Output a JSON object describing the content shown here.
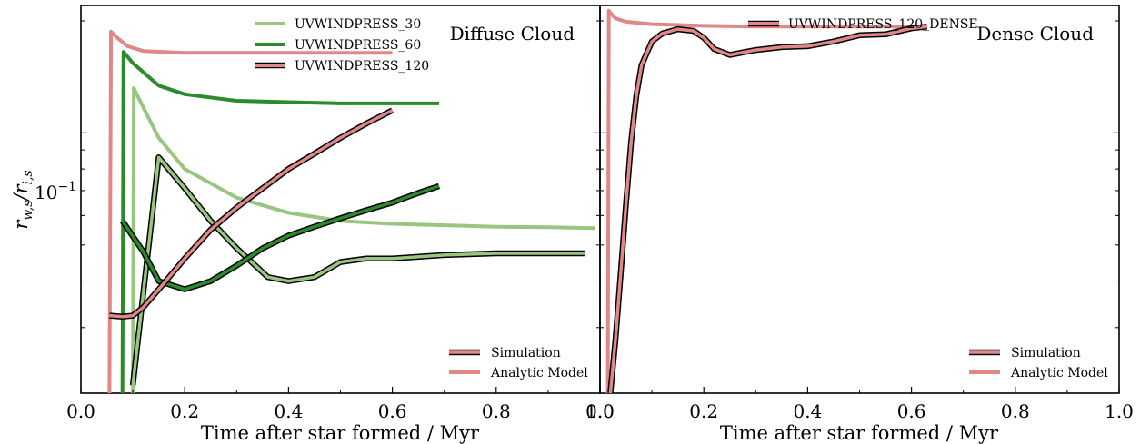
{
  "chart_data": [
    {
      "type": "line",
      "panel_title": "Diffuse Cloud",
      "xlabel": "Time after star formed / Myr",
      "ylabel": "r_{w,s}/r_{i,s}",
      "xlim": [
        0,
        1.0
      ],
      "ylim": [
        0.02,
        0.22
      ],
      "yscale": "log",
      "x_tick_labels": [
        "0.0",
        "0.2",
        "0.4",
        "0.6",
        "0.8",
        "1.0"
      ],
      "y_tick_label": "10^{-1}",
      "legend_series_position": "top-right",
      "legend_style_position": "bottom-right",
      "series": [
        {
          "name": "UVWINDPRESS_30",
          "color": "#98c580",
          "simulation": {
            "x": [
              0.1,
              0.15,
              0.2,
              0.25,
              0.3,
              0.36,
              0.4,
              0.45,
              0.5,
              0.55,
              0.6,
              0.7,
              0.8,
              0.9,
              0.97
            ],
            "y": [
              0.021,
              0.086,
              0.071,
              0.058,
              0.049,
              0.041,
              0.04,
              0.041,
              0.045,
              0.046,
              0.046,
              0.047,
              0.0475,
              0.0475,
              0.0475
            ]
          },
          "analytic": {
            "x": [
              0.1,
              0.102,
              0.11,
              0.15,
              0.2,
              0.3,
              0.4,
              0.5,
              0.6,
              0.7,
              0.8,
              0.9,
              0.99
            ],
            "y": [
              0.02,
              0.132,
              0.125,
              0.097,
              0.08,
              0.067,
              0.061,
              0.058,
              0.057,
              0.0565,
              0.056,
              0.0558,
              0.0555
            ]
          }
        },
        {
          "name": "UVWINDPRESS_60",
          "color": "#2b8a2b",
          "simulation": {
            "x": [
              0.08,
              0.12,
              0.15,
              0.2,
              0.25,
              0.3,
              0.35,
              0.4,
              0.45,
              0.5,
              0.55,
              0.6,
              0.65,
              0.69
            ],
            "y": [
              0.058,
              0.048,
              0.04,
              0.038,
              0.04,
              0.044,
              0.049,
              0.053,
              0.056,
              0.059,
              0.062,
              0.065,
              0.069,
              0.072
            ]
          },
          "analytic": {
            "x": [
              0.08,
              0.082,
              0.1,
              0.15,
              0.2,
              0.3,
              0.4,
              0.5,
              0.6,
              0.69
            ],
            "y": [
              0.02,
              0.165,
              0.154,
              0.134,
              0.127,
              0.122,
              0.121,
              0.12,
              0.12,
              0.12
            ]
          }
        },
        {
          "name": "UVWINDPRESS_120",
          "color": "#e08888",
          "simulation": {
            "x": [
              0.055,
              0.08,
              0.1,
              0.12,
              0.15,
              0.2,
              0.25,
              0.3,
              0.35,
              0.4,
              0.45,
              0.5,
              0.55,
              0.6
            ],
            "y": [
              0.0323,
              0.0321,
              0.0323,
              0.034,
              0.038,
              0.046,
              0.055,
              0.063,
              0.071,
              0.08,
              0.088,
              0.097,
              0.106,
              0.115
            ]
          },
          "analytic": {
            "x": [
              0.055,
              0.058,
              0.07,
              0.09,
              0.12,
              0.16,
              0.2,
              0.3,
              0.4,
              0.5,
              0.6
            ],
            "y": [
              0.02,
              0.187,
              0.18,
              0.171,
              0.166,
              0.165,
              0.164,
              0.164,
              0.164,
              0.164,
              0.164
            ]
          }
        }
      ]
    },
    {
      "type": "line",
      "panel_title": "Dense Cloud",
      "xlabel": "Time after star formed / Myr",
      "xlim": [
        0,
        1.0
      ],
      "ylim": [
        0.02,
        0.22
      ],
      "yscale": "log",
      "x_tick_labels": [
        "0.0",
        "0.2",
        "0.4",
        "0.6",
        "0.8",
        "1.0"
      ],
      "legend_series_position": "top-right",
      "legend_style_position": "bottom-right",
      "series": [
        {
          "name": "UVWINDPRESS_120_DENSE",
          "color": "#e08888",
          "simulation": {
            "x": [
              0.02,
              0.03,
              0.04,
              0.05,
              0.06,
              0.07,
              0.08,
              0.1,
              0.12,
              0.15,
              0.18,
              0.2,
              0.22,
              0.25,
              0.3,
              0.35,
              0.4,
              0.45,
              0.5,
              0.55,
              0.6,
              0.63
            ],
            "y": [
              0.02,
              0.028,
              0.042,
              0.064,
              0.095,
              0.126,
              0.152,
              0.176,
              0.185,
              0.19,
              0.188,
              0.18,
              0.168,
              0.162,
              0.167,
              0.17,
              0.171,
              0.176,
              0.183,
              0.184,
              0.191,
              0.193
            ]
          },
          "analytic": {
            "x": [
              0.015,
              0.017,
              0.02,
              0.03,
              0.05,
              0.1,
              0.2,
              0.3,
              0.4,
              0.5,
              0.6,
              0.63
            ],
            "y": [
              0.02,
              0.213,
              0.21,
              0.203,
              0.199,
              0.196,
              0.194,
              0.193,
              0.193,
              0.193,
              0.193,
              0.193
            ]
          }
        }
      ]
    }
  ],
  "legend_style": {
    "simulation_label": "Simulation",
    "analytic_label": "Analytic Model"
  }
}
